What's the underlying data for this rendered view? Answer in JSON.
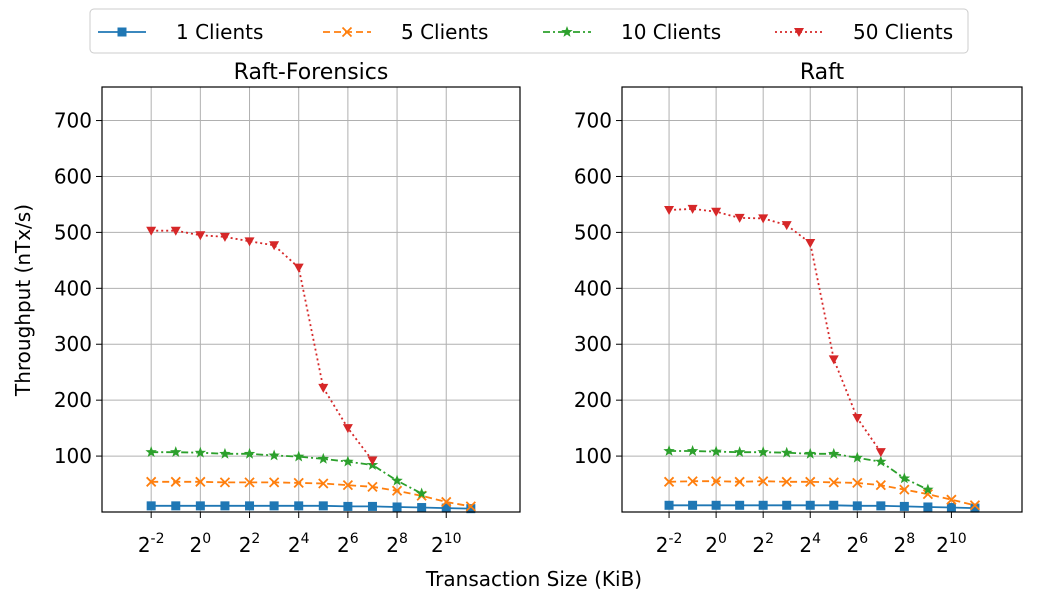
{
  "figure": {
    "shared_xlabel": "Transaction Size (KiB)",
    "shared_ylabel": "Throughput (nTx/s)"
  },
  "legend": {
    "placement": "top-center",
    "items": [
      {
        "label": "1 Clients",
        "color": "#1f77b4",
        "marker": "square",
        "line": "solid"
      },
      {
        "label": "5 Clients",
        "color": "#ff7f0e",
        "marker": "x",
        "line": "dashed"
      },
      {
        "label": "10 Clients",
        "color": "#2ca02c",
        "marker": "star",
        "line": "dashdot"
      },
      {
        "label": "50 Clients",
        "color": "#d62728",
        "marker": "triangle-down",
        "line": "dotted"
      }
    ]
  },
  "chart_data": [
    {
      "type": "line",
      "title": "Raft-Forensics",
      "xlabel": "Transaction Size (KiB)",
      "ylabel": "Throughput (nTx/s)",
      "x_scale": "log2",
      "x": [
        0.25,
        0.5,
        1,
        2,
        4,
        8,
        16,
        32,
        64,
        128,
        256,
        512,
        1024,
        2048
      ],
      "xlim": [
        0.0625,
        8192
      ],
      "ylim": [
        0,
        760
      ],
      "x_ticks": [
        "2^-2",
        "2^0",
        "2^2",
        "2^4",
        "2^6",
        "2^8",
        "2^10"
      ],
      "y_ticks": [
        100,
        200,
        300,
        400,
        500,
        600,
        700
      ],
      "grid": true,
      "series": [
        {
          "name": "1 Clients",
          "values": [
            11,
            11,
            11,
            11,
            11,
            11,
            11,
            11,
            10,
            10,
            9,
            8,
            7,
            6
          ]
        },
        {
          "name": "5 Clients",
          "values": [
            54,
            54,
            54,
            53,
            53,
            53,
            52,
            51,
            48,
            45,
            38,
            29,
            18,
            10
          ]
        },
        {
          "name": "10 Clients",
          "values": [
            107,
            107,
            106,
            104,
            104,
            101,
            99,
            95,
            90,
            84,
            56,
            33,
            null,
            null
          ]
        },
        {
          "name": "50 Clients",
          "values": [
            503,
            503,
            495,
            492,
            484,
            477,
            437,
            222,
            150,
            92,
            null,
            null,
            null,
            null
          ]
        }
      ]
    },
    {
      "type": "line",
      "title": "Raft",
      "xlabel": "Transaction Size (KiB)",
      "ylabel": "Throughput (nTx/s)",
      "x_scale": "log2",
      "x": [
        0.25,
        0.5,
        1,
        2,
        4,
        8,
        16,
        32,
        64,
        128,
        256,
        512,
        1024,
        2048
      ],
      "xlim": [
        0.0625,
        8192
      ],
      "ylim": [
        0,
        760
      ],
      "x_ticks": [
        "2^-2",
        "2^0",
        "2^2",
        "2^4",
        "2^6",
        "2^8",
        "2^10"
      ],
      "y_ticks": [
        100,
        200,
        300,
        400,
        500,
        600,
        700
      ],
      "grid": true,
      "series": [
        {
          "name": "1 Clients",
          "values": [
            12,
            12,
            12,
            12,
            12,
            12,
            12,
            12,
            11,
            11,
            10,
            9,
            8,
            7
          ]
        },
        {
          "name": "5 Clients",
          "values": [
            54,
            55,
            55,
            54,
            55,
            54,
            54,
            53,
            52,
            48,
            40,
            32,
            22,
            12
          ]
        },
        {
          "name": "10 Clients",
          "values": [
            109,
            109,
            108,
            107,
            107,
            106,
            104,
            104,
            97,
            90,
            60,
            40,
            null,
            null
          ]
        },
        {
          "name": "50 Clients",
          "values": [
            540,
            542,
            537,
            526,
            525,
            513,
            481,
            273,
            168,
            107,
            null,
            null,
            null,
            null
          ]
        }
      ]
    }
  ]
}
